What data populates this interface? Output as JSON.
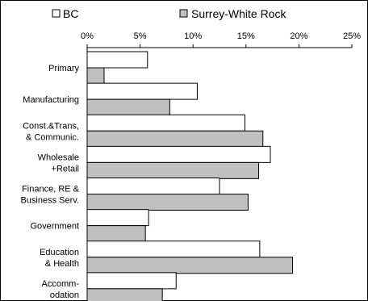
{
  "chart_data": {
    "type": "bar",
    "orientation": "horizontal",
    "categories": [
      [
        "Primary"
      ],
      [
        "Manufacturing"
      ],
      [
        "Const.&Trans,",
        "& Communic."
      ],
      [
        "Wholesale",
        "+Retail"
      ],
      [
        "Finance, RE &",
        "Business Serv."
      ],
      [
        "Government"
      ],
      [
        "Education",
        "& Health"
      ],
      [
        "Accomm-",
        "odation"
      ]
    ],
    "series": [
      {
        "name": "BC",
        "color": "#ffffff",
        "values": [
          5.7,
          10.4,
          14.9,
          17.3,
          12.5,
          5.8,
          16.3,
          8.4
        ]
      },
      {
        "name": "Surrey-White Rock",
        "color": "#c0c0c0",
        "values": [
          1.6,
          7.8,
          16.6,
          16.2,
          15.2,
          5.5,
          19.4,
          7.1
        ]
      }
    ],
    "xaxis": {
      "min": 0,
      "max": 25,
      "ticks": [
        "0%",
        "5%",
        "10%",
        "15%",
        "20%",
        "25%"
      ],
      "tick_values": [
        0,
        5,
        10,
        15,
        20,
        25
      ],
      "position": "top"
    },
    "grid": false,
    "legend": "top"
  }
}
